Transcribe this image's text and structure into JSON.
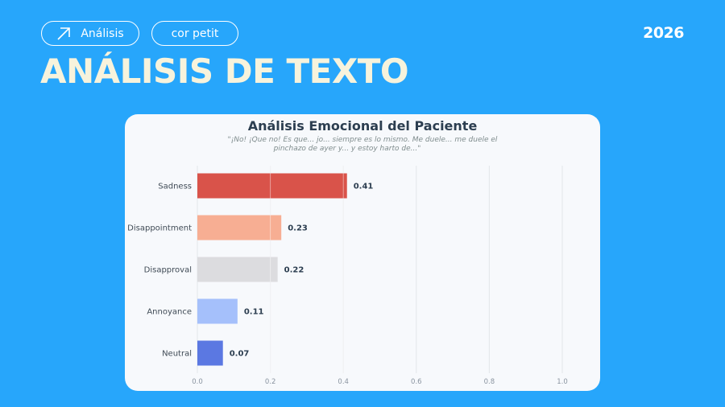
{
  "header": {
    "pills": [
      {
        "label": "Análisis",
        "icon": "arrow-up-right-icon"
      },
      {
        "label": "cor petit"
      }
    ],
    "year": "2026",
    "title": "ANÁLISIS DE TEXTO"
  },
  "colors": {
    "background": "#27a6fb",
    "title": "#f7f3dc",
    "card": "#f7f9fc"
  },
  "chart_data": {
    "type": "bar",
    "orientation": "horizontal",
    "title": "Análisis Emocional del Paciente",
    "subtitle_lines": [
      "\"¡No! ¡Que no! Es que... jo... siempre es lo mismo. Me duele... me duele el",
      "pinchazo de ayer y... y estoy harto de...\""
    ],
    "categories": [
      "Sadness",
      "Disappointment",
      "Disapproval",
      "Annoyance",
      "Neutral"
    ],
    "values": [
      0.41,
      0.23,
      0.22,
      0.11,
      0.07
    ],
    "value_labels": [
      "0.41",
      "0.23",
      "0.22",
      "0.11",
      "0.07"
    ],
    "bar_colors": [
      "#d9534a",
      "#f7ae93",
      "#dcdcdf",
      "#a5c0fb",
      "#5b78e2"
    ],
    "xlim": [
      0,
      1.0
    ],
    "xticks": [
      0.0,
      0.2,
      0.4,
      0.6,
      0.8,
      1.0
    ],
    "xtick_labels": [
      "0.0",
      "0.2",
      "0.4",
      "0.6",
      "0.8",
      "1.0"
    ],
    "grid": true
  }
}
